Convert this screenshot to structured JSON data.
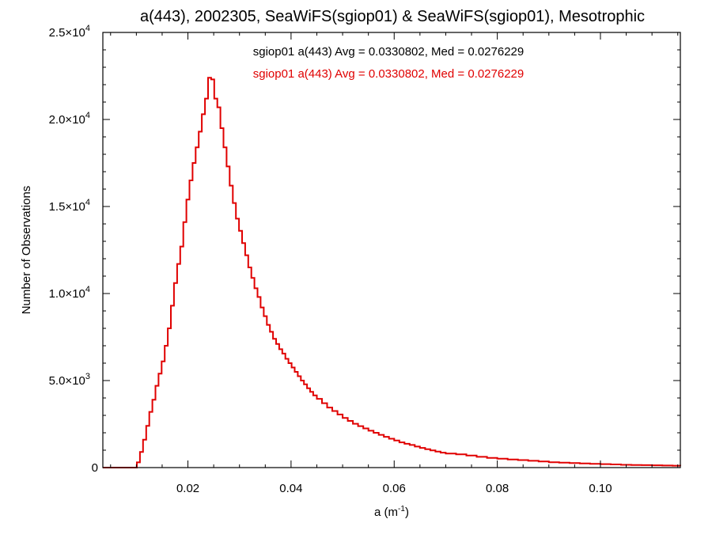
{
  "chart_data": {
    "type": "line",
    "title": "a(443), 2002305, SeaWiFS(sgiop01) & SeaWiFS(sgiop01), Mesotrophic",
    "xlabel": "a (m⁻¹)",
    "ylabel": "Number of Observations",
    "xlim": [
      0.0035,
      0.1155
    ],
    "ylim": [
      0,
      25000
    ],
    "x_ticks": [
      {
        "value": 0.02,
        "label": "0.02"
      },
      {
        "value": 0.04,
        "label": "0.04"
      },
      {
        "value": 0.06,
        "label": "0.06"
      },
      {
        "value": 0.08,
        "label": "0.08"
      },
      {
        "value": 0.1,
        "label": "0.10"
      }
    ],
    "y_ticks": [
      {
        "value": 0,
        "label": "0"
      },
      {
        "value": 5000,
        "mantissa": "5.0",
        "exp": "3"
      },
      {
        "value": 10000,
        "mantissa": "1.0",
        "exp": "4"
      },
      {
        "value": 15000,
        "mantissa": "1.5",
        "exp": "4"
      },
      {
        "value": 20000,
        "mantissa": "2.0",
        "exp": "4"
      },
      {
        "value": 25000,
        "mantissa": "2.5",
        "exp": "4"
      }
    ],
    "style": "step",
    "grid": false,
    "annotations": [
      {
        "text": "sgiop01 a(443) Avg = 0.0330802, Med = 0.0276229",
        "color": "#000000"
      },
      {
        "text": "sgiop01 a(443) Avg = 0.0330802, Med = 0.0276229",
        "color": "#e00000"
      }
    ],
    "series": [
      {
        "color": "#e00000",
        "x": [
          0.0035,
          0.0095,
          0.0101,
          0.0107,
          0.0113,
          0.0119,
          0.0125,
          0.0131,
          0.0137,
          0.0143,
          0.0149,
          0.0155,
          0.0161,
          0.0167,
          0.0173,
          0.0179,
          0.0185,
          0.0191,
          0.0197,
          0.0203,
          0.0209,
          0.0215,
          0.0221,
          0.0227,
          0.0233,
          0.0239,
          0.0245,
          0.0251,
          0.0257,
          0.0263,
          0.0269,
          0.0275,
          0.0281,
          0.0287,
          0.0293,
          0.0299,
          0.0305,
          0.0311,
          0.0317,
          0.0323,
          0.0329,
          0.0335,
          0.0341,
          0.0347,
          0.0353,
          0.0359,
          0.0365,
          0.0371,
          0.0377,
          0.0383,
          0.0389,
          0.0395,
          0.0401,
          0.0407,
          0.0413,
          0.0419,
          0.0425,
          0.0431,
          0.0437,
          0.0443,
          0.045,
          0.046,
          0.047,
          0.048,
          0.049,
          0.05,
          0.051,
          0.052,
          0.053,
          0.054,
          0.055,
          0.056,
          0.057,
          0.058,
          0.059,
          0.06,
          0.061,
          0.062,
          0.063,
          0.064,
          0.065,
          0.066,
          0.067,
          0.068,
          0.069,
          0.07,
          0.072,
          0.074,
          0.076,
          0.078,
          0.08,
          0.082,
          0.084,
          0.086,
          0.088,
          0.09,
          0.092,
          0.094,
          0.096,
          0.098,
          0.1,
          0.102,
          0.104,
          0.106,
          0.108,
          0.11,
          0.112,
          0.114,
          0.1155
        ],
        "y": [
          0,
          0,
          300,
          900,
          1600,
          2400,
          3200,
          3900,
          4700,
          5400,
          6100,
          7000,
          8000,
          9300,
          10600,
          11700,
          12700,
          14100,
          15400,
          16500,
          17500,
          18400,
          19300,
          20300,
          21200,
          22400,
          22300,
          21200,
          20700,
          19500,
          18400,
          17300,
          16200,
          15200,
          14300,
          13600,
          12900,
          12200,
          11500,
          10900,
          10300,
          9800,
          9200,
          8700,
          8200,
          7800,
          7400,
          7100,
          6800,
          6550,
          6250,
          6000,
          5750,
          5500,
          5250,
          5000,
          4780,
          4560,
          4350,
          4150,
          3950,
          3700,
          3450,
          3250,
          3050,
          2850,
          2680,
          2520,
          2380,
          2250,
          2120,
          2000,
          1880,
          1770,
          1660,
          1560,
          1450,
          1370,
          1300,
          1210,
          1130,
          1060,
          990,
          920,
          860,
          810,
          760,
          690,
          620,
          560,
          510,
          470,
          430,
          390,
          350,
          310,
          280,
          260,
          240,
          220,
          200,
          180,
          160,
          150,
          140,
          130,
          120,
          110,
          100
        ]
      }
    ]
  }
}
